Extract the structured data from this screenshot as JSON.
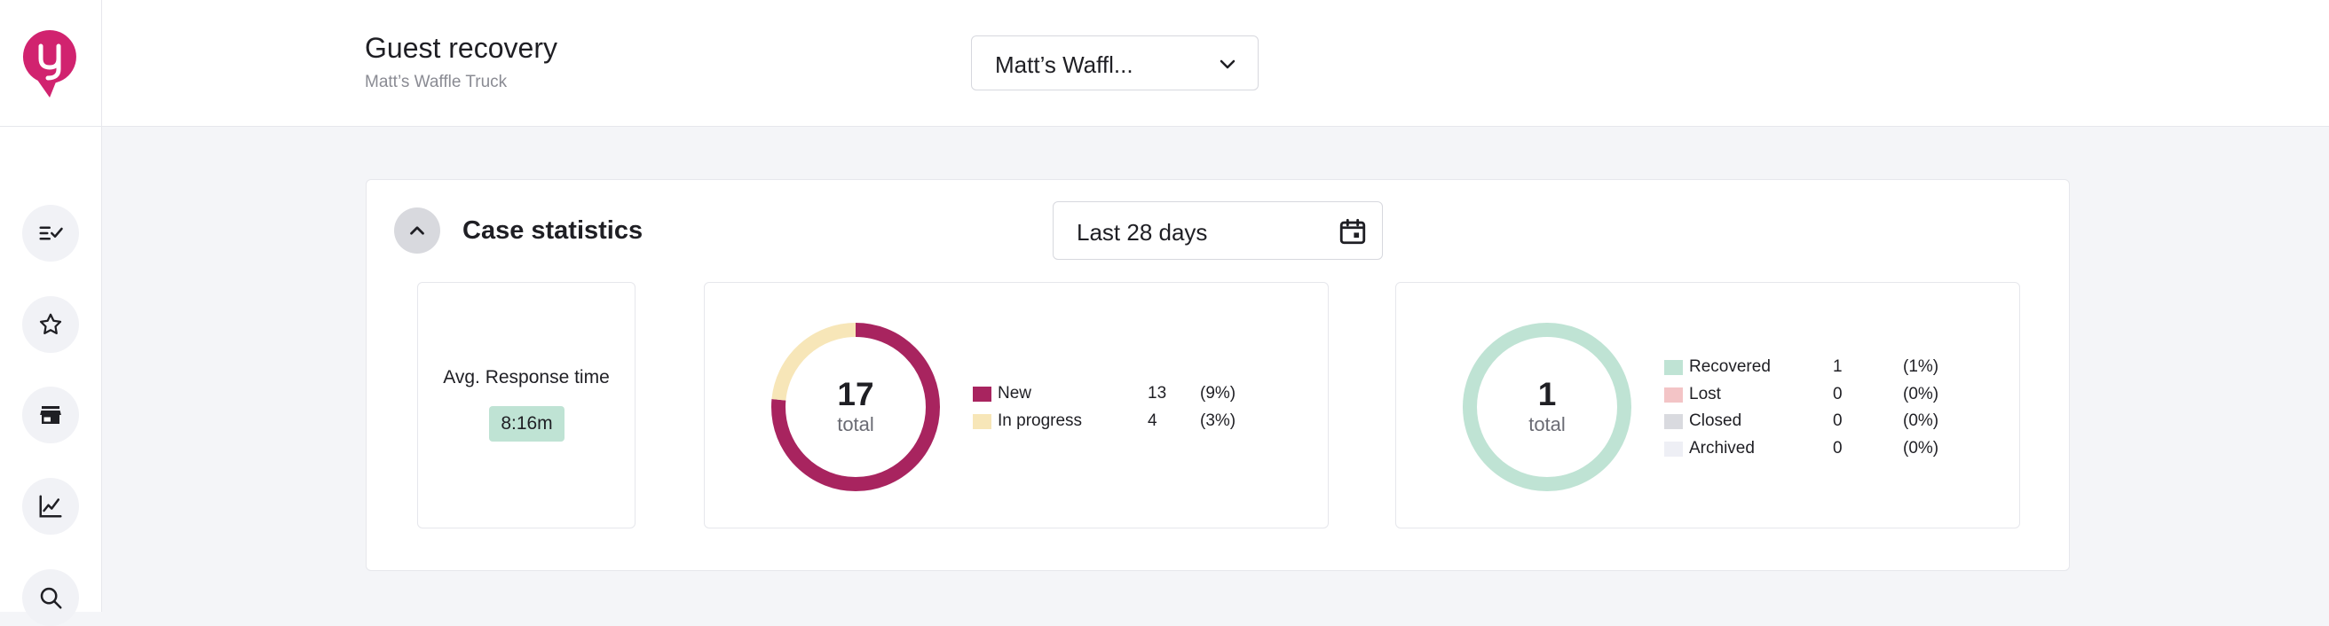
{
  "header": {
    "title": "Guest recovery",
    "subtitle": "Matt’s Waffle Truck",
    "location_select": {
      "value": "Matt’s Waffl..."
    }
  },
  "sidebar": {
    "items": [
      {
        "name": "tasks",
        "icon": "checklist-icon"
      },
      {
        "name": "reviews",
        "icon": "star-icon"
      },
      {
        "name": "locations",
        "icon": "store-icon"
      },
      {
        "name": "analytics",
        "icon": "chart-line-icon"
      },
      {
        "name": "search",
        "icon": "search-icon"
      }
    ]
  },
  "card": {
    "title": "Case statistics",
    "date_range": "Last 28 days",
    "avg_response": {
      "label": "Avg. Response time",
      "value": "8:16m"
    },
    "cases": {
      "total": "17",
      "total_label": "total",
      "items": [
        {
          "label": "New",
          "count": "13",
          "percent": "(9%)",
          "color": "#a8245f",
          "value": 13
        },
        {
          "label": "In progress",
          "count": "4",
          "percent": "(3%)",
          "color": "#f7e6b8",
          "value": 4
        }
      ]
    },
    "outcomes": {
      "total": "1",
      "total_label": "total",
      "items": [
        {
          "label": "Recovered",
          "count": "1",
          "percent": "(1%)",
          "color": "#bfe3d4",
          "value": 1
        },
        {
          "label": "Lost",
          "count": "0",
          "percent": "(0%)",
          "color": "#f3c4c6",
          "value": 0
        },
        {
          "label": "Closed",
          "count": "0",
          "percent": "(0%)",
          "color": "#d9dadf",
          "value": 0
        },
        {
          "label": "Archived",
          "count": "0",
          "percent": "(0%)",
          "color": "#eeeff5",
          "value": 0
        }
      ]
    }
  },
  "colors": {
    "brand": "#d1236f",
    "page_bg": "#f4f5f8"
  }
}
